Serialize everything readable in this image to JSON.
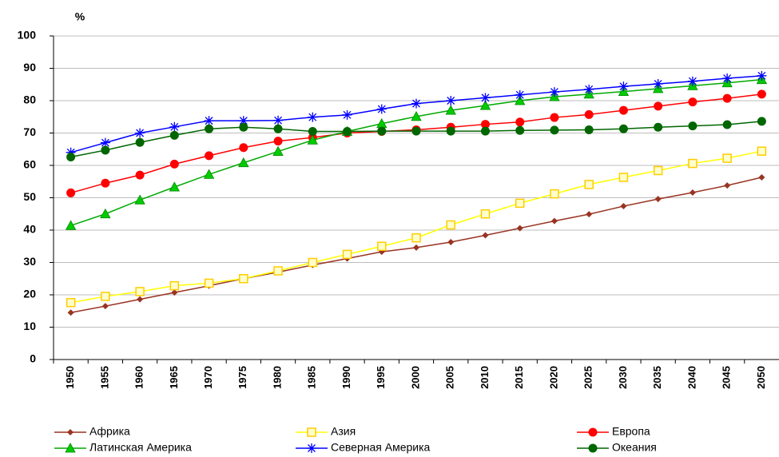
{
  "chart_data": {
    "type": "line",
    "y_label": "%",
    "categories": [
      "1950",
      "1955",
      "1960",
      "1965",
      "1970",
      "1975",
      "1980",
      "1985",
      "1990",
      "1995",
      "2000",
      "2005",
      "2010",
      "2015",
      "2020",
      "2025",
      "2030",
      "2035",
      "2040",
      "2045",
      "2050"
    ],
    "ylim": [
      0,
      100
    ],
    "yticks": [
      0,
      10,
      20,
      30,
      40,
      50,
      60,
      70,
      80,
      90,
      100
    ],
    "grid": true,
    "legend": "bottom",
    "series": [
      {
        "name": "Африка",
        "color": "#993322",
        "marker": "diamond",
        "marker_color": "#993322",
        "values": [
          14.5,
          16.5,
          18.6,
          20.7,
          22.8,
          25,
          27,
          29.2,
          31.2,
          33.3,
          34.6,
          36.3,
          38.4,
          40.6,
          42.8,
          44.9,
          47.4,
          49.6,
          51.6,
          53.8,
          56.3
        ]
      },
      {
        "name": "Азия",
        "color": "#ffff00",
        "marker": "square",
        "marker_color": "#ffcc00",
        "values": [
          17.6,
          19.5,
          21,
          22.8,
          23.6,
          25,
          27.4,
          30,
          32.5,
          35,
          37.6,
          41.6,
          45,
          48.3,
          51.2,
          54.1,
          56.3,
          58.4,
          60.6,
          62.2,
          64.4
        ]
      },
      {
        "name": "Европа",
        "color": "#ff0000",
        "marker": "circle",
        "marker_color": "#ff0000",
        "values": [
          51.5,
          54.5,
          57,
          60.4,
          63,
          65.5,
          67.5,
          68.6,
          70,
          70.5,
          71,
          71.8,
          72.7,
          73.4,
          74.8,
          75.7,
          77,
          78.3,
          79.6,
          80.7,
          82
        ]
      },
      {
        "name": "Латинская Америка",
        "color": "#00aa00",
        "marker": "triangle",
        "marker_color": "#00cc00",
        "values": [
          41.4,
          45,
          49.3,
          53.3,
          57.2,
          60.8,
          64.3,
          67.8,
          70.5,
          72.9,
          75.1,
          77,
          78.5,
          80,
          81.2,
          82,
          82.8,
          83.7,
          84.6,
          85.5,
          86.5
        ]
      },
      {
        "name": "Северная Америка",
        "color": "#0000ff",
        "marker": "star",
        "marker_color": "#0000ff",
        "values": [
          64,
          67,
          70,
          71.9,
          73.8,
          73.8,
          73.9,
          74.9,
          75.6,
          77.4,
          79.1,
          80,
          80.9,
          81.8,
          82.7,
          83.5,
          84.4,
          85.2,
          86,
          86.9,
          87.7
        ]
      },
      {
        "name": "Океания",
        "color": "#006600",
        "marker": "circle",
        "marker_color": "#006600",
        "values": [
          62.6,
          64.7,
          67.1,
          69.3,
          71.3,
          71.8,
          71.3,
          70.5,
          70.5,
          70.6,
          70.6,
          70.6,
          70.6,
          70.8,
          70.9,
          71,
          71.3,
          71.8,
          72.2,
          72.6,
          73.6
        ]
      }
    ]
  }
}
